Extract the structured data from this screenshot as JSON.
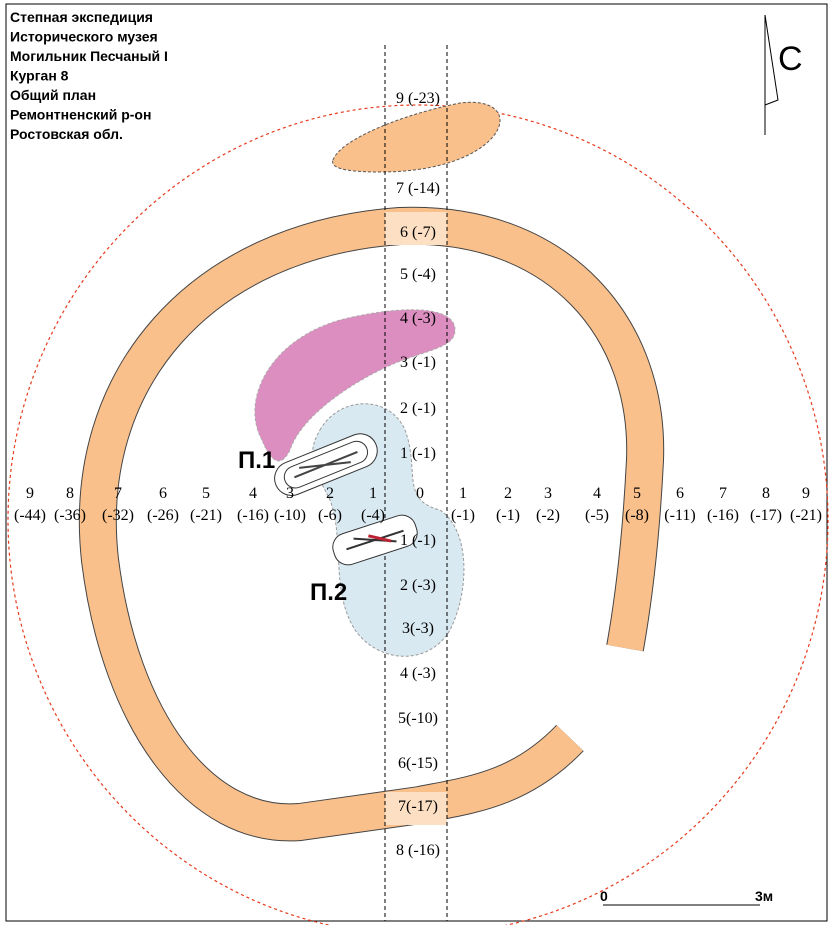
{
  "title_lines": [
    "Степная экспедиция",
    "Исторического музея",
    "Могильник Песчаный I",
    "Курган 8",
    "Общий план",
    "Ремонтненский р-он",
    "Ростовская обл."
  ],
  "north_label": "С",
  "vertical_axis": [
    "9 (-23)",
    "7 (-14)",
    "6 (-7)",
    "5 (-4)",
    "4 (-3)",
    "3 (-1)",
    "2 (-1)",
    "1 (-1)",
    "1 (-1)",
    "2 (-3)",
    "3(-3)",
    "4 (-3)",
    "5(-10)",
    "6(-15)",
    "7(-17)",
    "8 (-16)"
  ],
  "horizontal_axis": {
    "numbers": [
      "9",
      "8",
      "7",
      "6",
      "5",
      "4",
      "3",
      "2",
      "1",
      "0",
      "1",
      "2",
      "3",
      "4",
      "5",
      "6",
      "7",
      "8",
      "9"
    ],
    "elevations": [
      "(-44)",
      "(-36)",
      "(-32)",
      "(-26)",
      "(-21)",
      "(-16)",
      "(-10)",
      "(-6)",
      "(-4)",
      "(-1)",
      "(-1)",
      "(-2)",
      "(-5)",
      "(-8)",
      "(-11)",
      "(-16)",
      "(-17)",
      "(-21)"
    ]
  },
  "pits": [
    "П.1",
    "П.2"
  ],
  "scale": {
    "start": "0",
    "end": "3м"
  }
}
